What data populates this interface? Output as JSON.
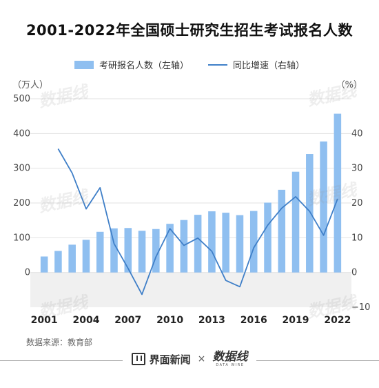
{
  "chart_data": {
    "type": "bar+line",
    "title": "2001-2022年全国硕士研究生招生考试报名人数",
    "x": [
      "2001",
      "2002",
      "2003",
      "2004",
      "2005",
      "2006",
      "2007",
      "2008",
      "2009",
      "2010",
      "2011",
      "2012",
      "2013",
      "2014",
      "2015",
      "2016",
      "2017",
      "2018",
      "2019",
      "2020",
      "2021",
      "2022"
    ],
    "x_tick_labels": [
      "2001",
      "2004",
      "2007",
      "2010",
      "2013",
      "2016",
      "2019",
      "2022"
    ],
    "series": [
      {
        "name": "考研报名人数（左轴）",
        "type": "bar",
        "axis": "left",
        "values": [
          46,
          62,
          80,
          94,
          117,
          127,
          128,
          120,
          125,
          140,
          151,
          166,
          176,
          172,
          165,
          177,
          201,
          238,
          290,
          341,
          377,
          457
        ]
      },
      {
        "name": "同比增速（右轴）",
        "type": "line",
        "axis": "right",
        "values": [
          null,
          35.6,
          28.6,
          18.3,
          24.4,
          8.3,
          1.2,
          -6.3,
          4.5,
          12.6,
          7.8,
          9.9,
          6.1,
          -2.3,
          -4.1,
          7.1,
          13.6,
          18.5,
          21.8,
          17.6,
          10.7,
          21.2
        ]
      }
    ],
    "y_left": {
      "unit": "（万人）",
      "ticks": [
        0,
        100,
        200,
        300,
        400,
        500
      ],
      "ylim": [
        -100,
        500
      ]
    },
    "y_right": {
      "unit": "（%）",
      "ticks": [
        -10,
        0,
        10,
        20,
        30,
        40
      ],
      "ylim": [
        -10,
        50
      ]
    },
    "grid": true,
    "negative_region_shaded": true,
    "legend_position": "top"
  },
  "source": "数据来源：教育部",
  "footer": {
    "brand1": "界面新闻",
    "separator": "×",
    "brand2": "数据线",
    "brand2_en": "DATA WIRE"
  },
  "watermark": "数据线",
  "colors": {
    "bar": "#8fbff0",
    "line": "#3f7fc8",
    "neg_region": "#f0f0f0",
    "grid": "#e2e2e2"
  }
}
